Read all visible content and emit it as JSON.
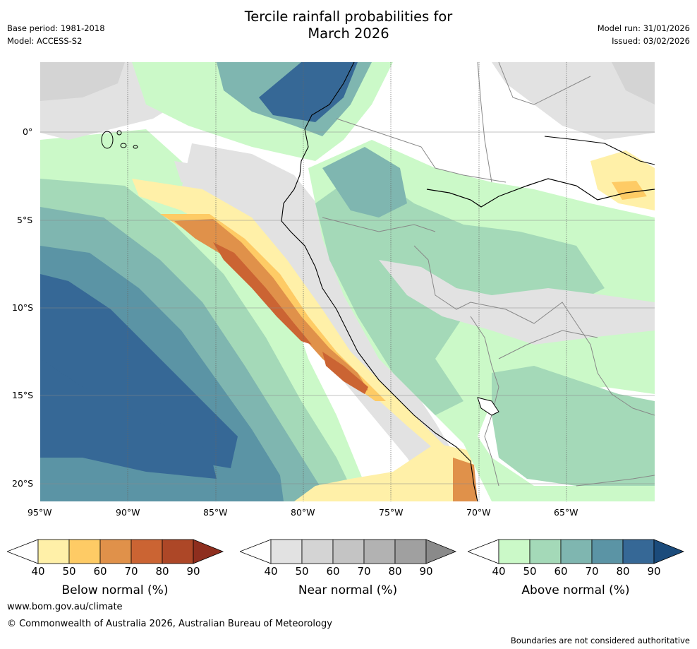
{
  "header": {
    "title_line1": "Tercile rainfall probabilities for",
    "title_line2": "March 2026",
    "base_period": "Base period: 1981-2018",
    "model": "Model: ACCESS-S2",
    "model_run": "Model run: 31/01/2026",
    "issued": "Issued: 03/02/2026"
  },
  "map": {
    "lon_labels": [
      "95°W",
      "90°W",
      "85°W",
      "80°W",
      "75°W",
      "70°W",
      "65°W"
    ],
    "lat_labels": [
      "0°",
      "5°S",
      "10°S",
      "15°S",
      "20°S"
    ]
  },
  "colorbars": [
    {
      "title": "Below normal (%)",
      "ticks": [
        "40",
        "50",
        "60",
        "70",
        "80",
        "90"
      ],
      "colors": [
        "#fff0a8",
        "#fecb65",
        "#e0914a",
        "#cb6433",
        "#ad4727",
        "#8e2e1e"
      ]
    },
    {
      "title": "Near normal (%)",
      "ticks": [
        "40",
        "50",
        "60",
        "70",
        "80",
        "90"
      ],
      "colors": [
        "#e2e2e2",
        "#d4d4d4",
        "#c4c4c4",
        "#b2b2b2",
        "#a0a0a0",
        "#8a8a8a"
      ]
    },
    {
      "title": "Above normal (%)",
      "ticks": [
        "40",
        "50",
        "60",
        "70",
        "80",
        "90"
      ],
      "colors": [
        "#cbf9c8",
        "#a4d9b8",
        "#7fb6b0",
        "#5b94a5",
        "#366896",
        "#1b4b7b"
      ]
    }
  ],
  "footer": {
    "url": "www.bom.gov.au/climate",
    "copyright": "© Commonwealth of Australia 2026, Australian Bureau of Meteorology",
    "disclaimer": "Boundaries are not considered authoritative"
  },
  "colors": {
    "land_outline": "#000000",
    "border": "#888888",
    "grid": "#666666"
  }
}
